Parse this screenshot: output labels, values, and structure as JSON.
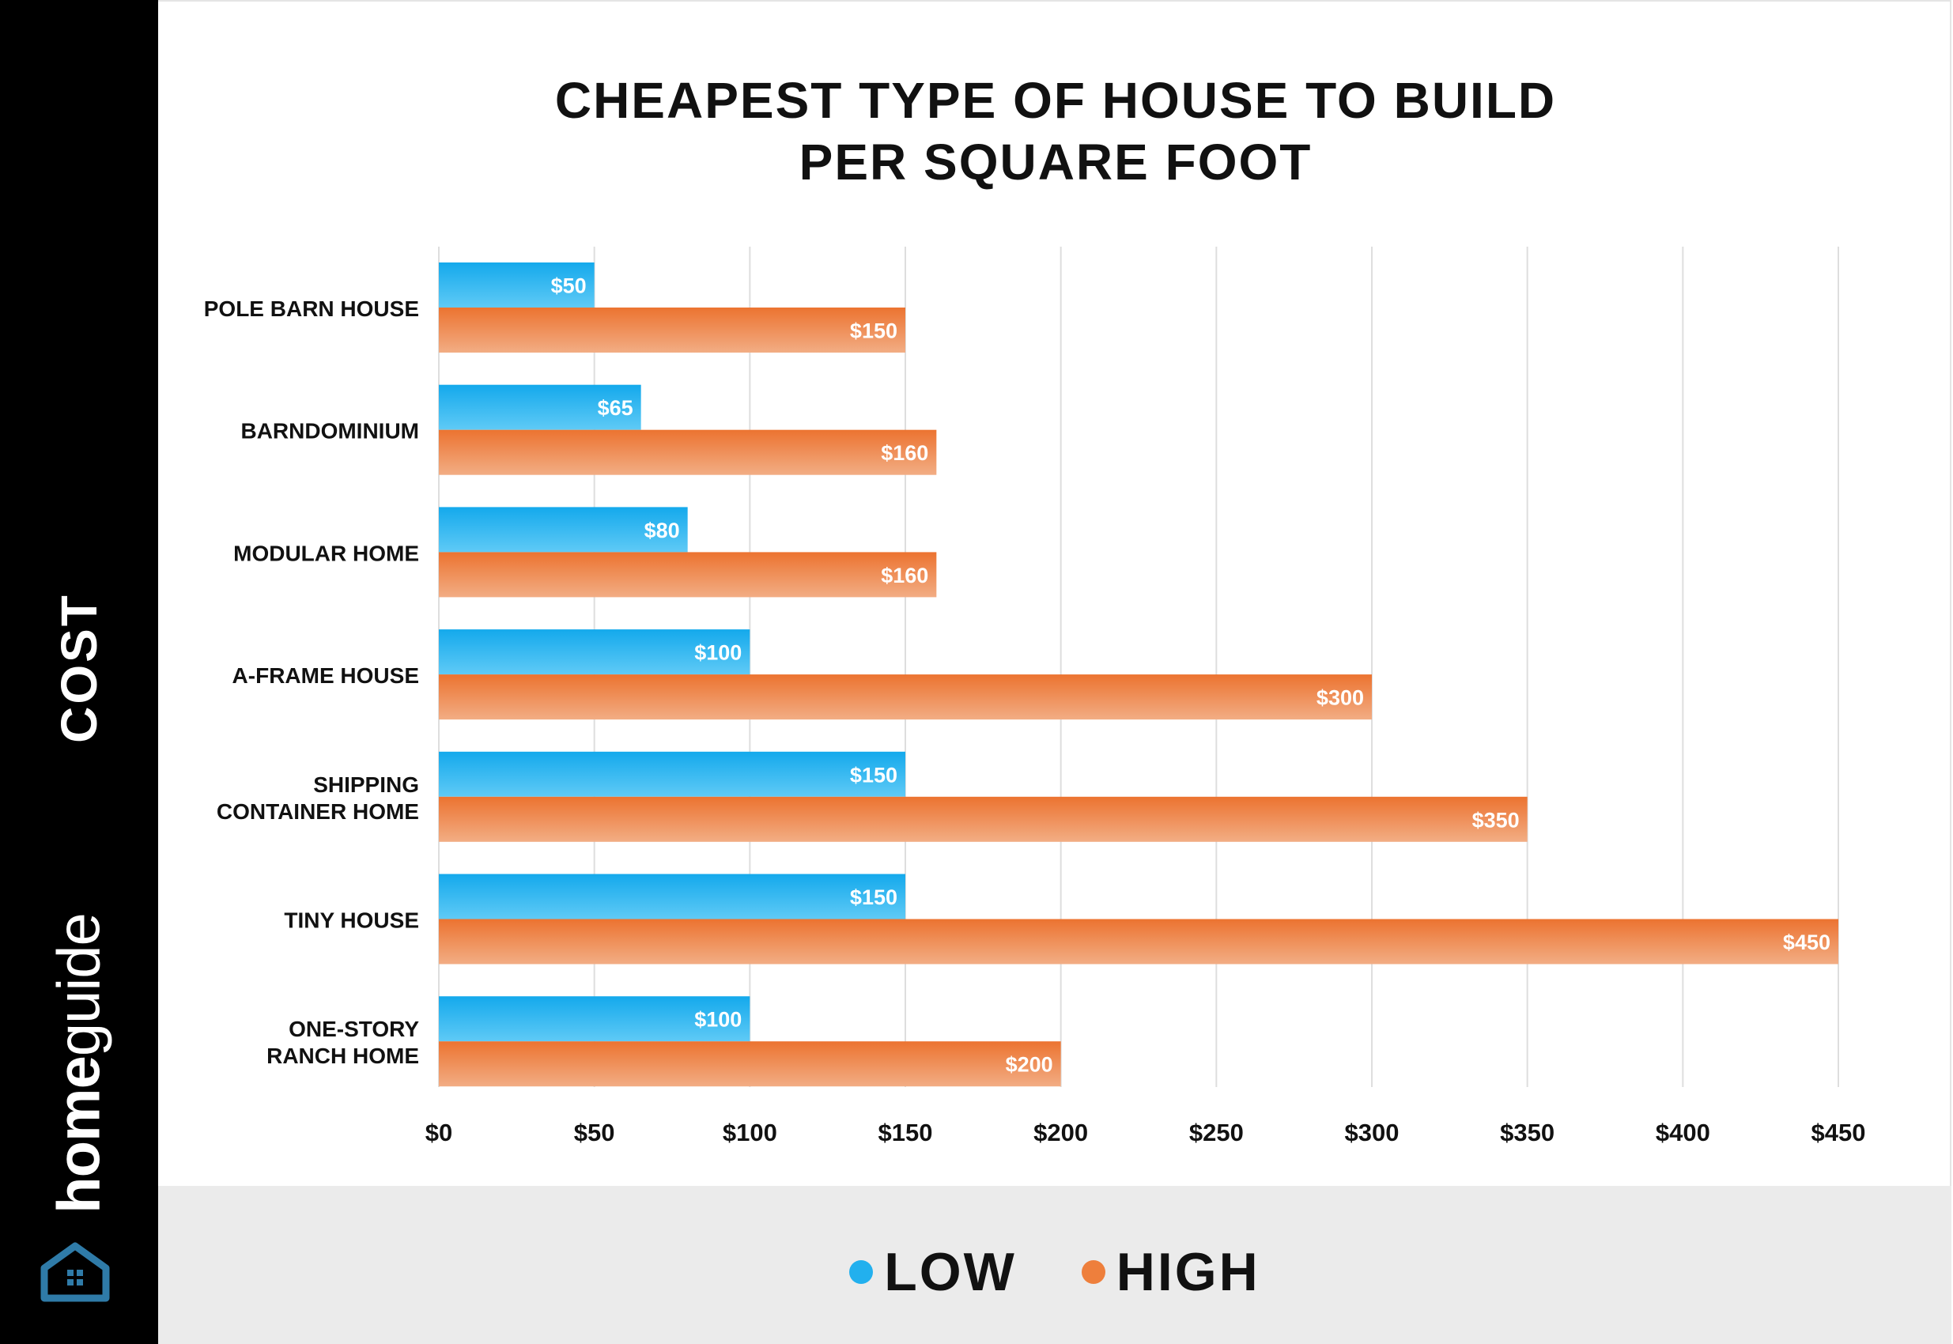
{
  "brand": {
    "name_bold": "home",
    "name_light": "guide",
    "logo_icon": "house-logo-icon",
    "logo_color": "#2f7ba8"
  },
  "sidebar": {
    "label": "COST"
  },
  "colors": {
    "low": "#22b0ee",
    "high": "#ee7f3c",
    "grid": "#dedede"
  },
  "chart_data": {
    "type": "bar",
    "orientation": "horizontal",
    "title": [
      "CHEAPEST TYPE OF HOUSE TO BUILD",
      "PER SQUARE FOOT"
    ],
    "ylabel": "COST",
    "categories": [
      [
        "POLE BARN HOUSE"
      ],
      [
        "BARNDOMINIUM"
      ],
      [
        "MODULAR HOME"
      ],
      [
        "A-FRAME HOUSE"
      ],
      [
        "SHIPPING",
        "CONTAINER HOME"
      ],
      [
        "TINY HOUSE"
      ],
      [
        "ONE-STORY",
        "RANCH HOME"
      ]
    ],
    "series": [
      {
        "name": "LOW",
        "values": [
          50,
          65,
          80,
          100,
          150,
          150,
          100
        ],
        "labels": [
          "$50",
          "$65",
          "$80",
          "$100",
          "$150",
          "$150",
          "$100"
        ]
      },
      {
        "name": "HIGH",
        "values": [
          150,
          160,
          160,
          300,
          350,
          450,
          200
        ],
        "labels": [
          "$150",
          "$160",
          "$160",
          "$300",
          "$350",
          "$450",
          "$200"
        ]
      }
    ],
    "xlim": [
      0,
      450
    ],
    "xticks": [
      0,
      50,
      100,
      150,
      200,
      250,
      300,
      350,
      400,
      450
    ],
    "xtick_labels": [
      "$0",
      "$50",
      "$100",
      "$150",
      "$200",
      "$250",
      "$300",
      "$350",
      "$400",
      "$450"
    ],
    "grid": true,
    "legend_position": "bottom"
  }
}
